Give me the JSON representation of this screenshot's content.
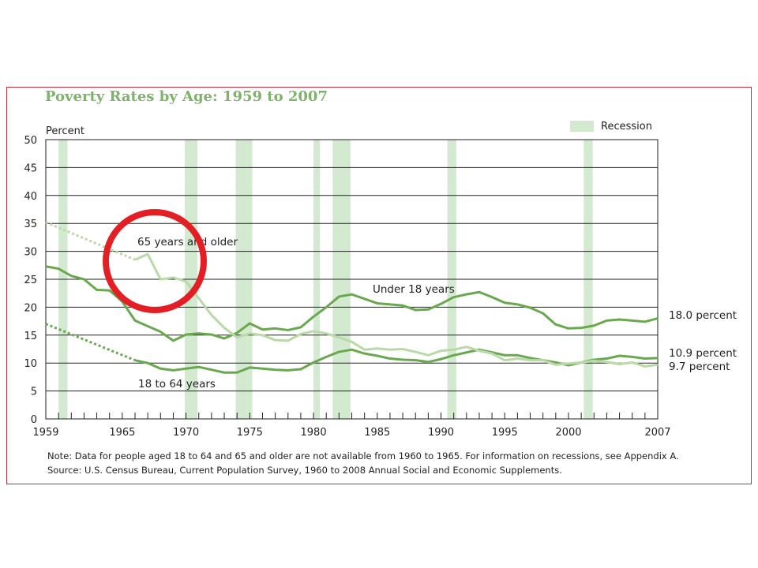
{
  "colors": {
    "accent": "#7fb26a",
    "series_under18": "#6aa84f",
    "series_18to64": "#6aa84f",
    "series_65plus": "#b9d9a6",
    "recession": "#d3ead0",
    "circle": "#e31e24",
    "frame": "#c0303a"
  },
  "chart_data": {
    "type": "line",
    "title": "Poverty Rates by Age:  1959 to 2007",
    "ylabel": "Percent",
    "xlim": [
      1959,
      2007
    ],
    "ylim": [
      0,
      50
    ],
    "yticks": [
      0,
      5,
      10,
      15,
      20,
      25,
      30,
      35,
      40,
      45,
      50
    ],
    "xtick_labels": [
      {
        "x": 1959,
        "label": "1959"
      },
      {
        "x": 1965,
        "label": "1965"
      },
      {
        "x": 1970,
        "label": "1970"
      },
      {
        "x": 1975,
        "label": "1975"
      },
      {
        "x": 1980,
        "label": "1980"
      },
      {
        "x": 1985,
        "label": "1985"
      },
      {
        "x": 1990,
        "label": "1990"
      },
      {
        "x": 1995,
        "label": "1995"
      },
      {
        "x": 2000,
        "label": "2000"
      },
      {
        "x": 2007,
        "label": "2007"
      }
    ],
    "grid": true,
    "legend": {
      "label": "Recession",
      "position": "top-right"
    },
    "recessions": [
      [
        1960,
        1960.7
      ],
      [
        1969.9,
        1970.9
      ],
      [
        1973.9,
        1975.2
      ],
      [
        1980.0,
        1980.5
      ],
      [
        1981.5,
        1982.9
      ],
      [
        1990.5,
        1991.2
      ],
      [
        2001.2,
        2001.9
      ]
    ],
    "series": [
      {
        "name": "Under 18 years",
        "end_label": "18.0 percent",
        "x": [
          1959,
          1960,
          1961,
          1962,
          1963,
          1964,
          1965,
          1966,
          1967,
          1968,
          1969,
          1970,
          1971,
          1972,
          1973,
          1974,
          1975,
          1976,
          1977,
          1978,
          1979,
          1980,
          1981,
          1982,
          1983,
          1984,
          1985,
          1986,
          1987,
          1988,
          1989,
          1990,
          1991,
          1992,
          1993,
          1994,
          1995,
          1996,
          1997,
          1998,
          1999,
          2000,
          2001,
          2002,
          2003,
          2004,
          2005,
          2006,
          2007
        ],
        "values": [
          27.3,
          26.9,
          25.6,
          25.0,
          23.1,
          23.0,
          21.0,
          17.6,
          16.6,
          15.6,
          14.0,
          15.1,
          15.3,
          15.1,
          14.4,
          15.4,
          17.1,
          16.0,
          16.2,
          15.9,
          16.4,
          18.3,
          20.0,
          21.9,
          22.3,
          21.5,
          20.7,
          20.5,
          20.3,
          19.5,
          19.6,
          20.6,
          21.8,
          22.3,
          22.7,
          21.8,
          20.8,
          20.5,
          19.9,
          18.9,
          16.9,
          16.2,
          16.3,
          16.7,
          17.6,
          17.8,
          17.6,
          17.4,
          18.0
        ],
        "dashed_x": [],
        "dashed_values": []
      },
      {
        "name": "18 to 64 years",
        "end_label": "10.9 percent",
        "x": [
          1966,
          1967,
          1968,
          1969,
          1970,
          1971,
          1972,
          1973,
          1974,
          1975,
          1976,
          1977,
          1978,
          1979,
          1980,
          1981,
          1982,
          1983,
          1984,
          1985,
          1986,
          1987,
          1988,
          1989,
          1990,
          1991,
          1992,
          1993,
          1994,
          1995,
          1996,
          1997,
          1998,
          1999,
          2000,
          2001,
          2002,
          2003,
          2004,
          2005,
          2006,
          2007
        ],
        "values": [
          10.5,
          10.0,
          9.0,
          8.7,
          9.0,
          9.3,
          8.8,
          8.3,
          8.3,
          9.2,
          9.0,
          8.8,
          8.7,
          8.9,
          10.1,
          11.1,
          12.0,
          12.4,
          11.7,
          11.3,
          10.8,
          10.6,
          10.5,
          10.2,
          10.7,
          11.4,
          11.9,
          12.4,
          11.9,
          11.4,
          11.4,
          10.9,
          10.5,
          10.1,
          9.6,
          10.1,
          10.6,
          10.8,
          11.3,
          11.1,
          10.8,
          10.9
        ],
        "dashed_x": [
          1959,
          1966
        ],
        "dashed_values": [
          17.0,
          10.5
        ]
      },
      {
        "name": "65 years and older",
        "end_label": "9.7 percent",
        "x": [
          1966,
          1967,
          1968,
          1969,
          1970,
          1971,
          1972,
          1973,
          1974,
          1975,
          1976,
          1977,
          1978,
          1979,
          1980,
          1981,
          1982,
          1983,
          1984,
          1985,
          1986,
          1987,
          1988,
          1989,
          1990,
          1991,
          1992,
          1993,
          1994,
          1995,
          1996,
          1997,
          1998,
          1999,
          2000,
          2001,
          2002,
          2003,
          2004,
          2005,
          2006,
          2007
        ],
        "values": [
          28.5,
          29.5,
          25.0,
          25.3,
          24.6,
          21.6,
          18.6,
          16.3,
          14.6,
          15.3,
          15.0,
          14.1,
          14.0,
          15.2,
          15.7,
          15.3,
          14.6,
          13.8,
          12.4,
          12.6,
          12.4,
          12.5,
          12.0,
          11.4,
          12.2,
          12.4,
          12.9,
          12.2,
          11.7,
          10.5,
          10.8,
          10.5,
          10.5,
          9.7,
          9.9,
          10.1,
          10.4,
          10.2,
          9.8,
          10.1,
          9.4,
          9.7
        ],
        "dashed_x": [
          1959,
          1966
        ],
        "dashed_values": [
          35.2,
          28.5
        ]
      }
    ],
    "inline_labels": [
      "65 years and older",
      "Under 18 years",
      "18 to 64 years"
    ],
    "annotation": "red circle highlighting the 65 years and older series in the late 1960s"
  },
  "notes": {
    "note": "Note:  Data for people aged 18 to 64 and 65 and older are not available from 1960 to 1965. For information on recessions, see Appendix A.",
    "source": "Source:  U.S. Census Bureau, Current Population Survey, 1960 to 2008 Annual Social and Economic Supplements."
  }
}
